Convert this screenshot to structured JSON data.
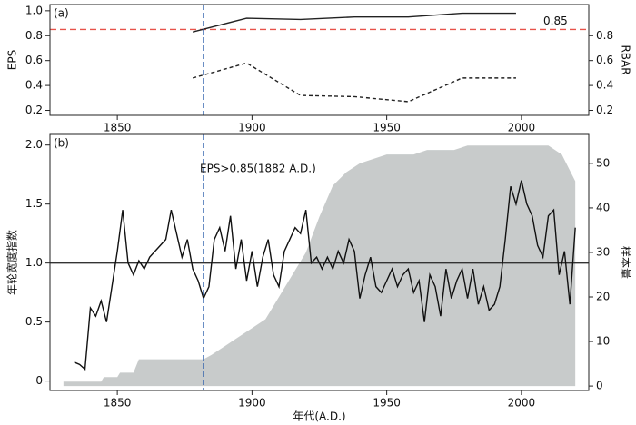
{
  "chart_data": [
    {
      "type": "line",
      "label": "(a)",
      "ylabel": "EPS",
      "y2label": "RBAR",
      "xlim": [
        1825,
        2025
      ],
      "xticks": [
        1850,
        1900,
        1950,
        2000
      ],
      "ylim": [
        0.16,
        1.05
      ],
      "yticks": [
        0.2,
        0.4,
        0.6,
        0.8,
        {
          "value": 1,
          "label": "1.0"
        }
      ],
      "y2lim": [
        0.16,
        1.05
      ],
      "y2ticks": [
        0.2,
        0.4,
        0.6,
        0.8
      ],
      "hline": 0.85,
      "hline_color": "#e8534a",
      "vline": 1882,
      "vline_color": "#2a5caa",
      "series": [
        {
          "color": "#222222",
          "style": "solid",
          "x": [
            1878,
            1898,
            1918,
            1938,
            1958,
            1978,
            1998
          ],
          "values": [
            0.83,
            0.94,
            0.93,
            0.95,
            0.95,
            0.98,
            0.98
          ]
        },
        {
          "color": "#222222",
          "style": "dashed",
          "axis": "y2",
          "x": [
            1878,
            1898,
            1918,
            1938,
            1958,
            1978,
            1998
          ],
          "values": [
            0.46,
            0.58,
            0.32,
            0.31,
            0.27,
            0.46,
            0.46
          ]
        }
      ]
    },
    {
      "type": "line",
      "label": "(b)",
      "ylabel": "年轮宽度指数",
      "y2label": "样本量",
      "xlabel": "年代(A.D.)",
      "xlim": [
        1825,
        2025
      ],
      "xticks": [
        1850,
        1900,
        1950,
        2000
      ],
      "ylim": [
        -0.08,
        2.09
      ],
      "yticks": [
        0,
        0.5,
        {
          "value": 1,
          "label": "1.0"
        },
        1.5,
        {
          "value": 2,
          "label": "2.0"
        }
      ],
      "y2lim": [
        -1,
        56.5
      ],
      "y2ticks": [
        0,
        10,
        20,
        30,
        40,
        50
      ],
      "hline": 1,
      "hline_color": "#333333",
      "vline": 1882,
      "vline_color": "#2a5caa",
      "annotation": "EPS>0.85(1882 A.D.)",
      "series": [
        {
          "style": "area",
          "color": "#c8cbcb",
          "axis": "y2",
          "x": [
            1830,
            1844,
            1845,
            1850,
            1851,
            1856,
            1858,
            1882,
            1885,
            1890,
            1895,
            1900,
            1905,
            1910,
            1915,
            1920,
            1925,
            1930,
            1935,
            1940,
            1945,
            1950,
            1960,
            1965,
            1975,
            1980,
            2000,
            2010,
            2015,
            2020
          ],
          "values": [
            1,
            1,
            2,
            2,
            3,
            3,
            6,
            6,
            7,
            9,
            11,
            13,
            15,
            20,
            25,
            30,
            38,
            45,
            48,
            50,
            51,
            52,
            52,
            53,
            53,
            54,
            54,
            54,
            52,
            46
          ]
        },
        {
          "style": "solid",
          "color": "#111111",
          "x": [
            1834,
            1836,
            1838,
            1840,
            1842,
            1844,
            1846,
            1848,
            1850,
            1852,
            1854,
            1856,
            1858,
            1860,
            1862,
            1864,
            1866,
            1868,
            1870,
            1872,
            1874,
            1876,
            1878,
            1880,
            1882,
            1884,
            1886,
            1888,
            1890,
            1892,
            1894,
            1896,
            1898,
            1900,
            1902,
            1904,
            1906,
            1908,
            1910,
            1912,
            1914,
            1916,
            1918,
            1920,
            1922,
            1924,
            1926,
            1928,
            1930,
            1932,
            1934,
            1936,
            1938,
            1940,
            1942,
            1944,
            1946,
            1948,
            1950,
            1952,
            1954,
            1956,
            1958,
            1960,
            1962,
            1964,
            1966,
            1968,
            1970,
            1972,
            1974,
            1976,
            1978,
            1980,
            1982,
            1984,
            1986,
            1988,
            1990,
            1992,
            1994,
            1996,
            1998,
            2000,
            2002,
            2004,
            2006,
            2008,
            2010,
            2012,
            2014,
            2016,
            2018,
            2020
          ],
          "values": [
            0.16,
            0.14,
            0.1,
            0.62,
            0.55,
            0.68,
            0.5,
            0.8,
            1.1,
            1.45,
            1.0,
            0.9,
            1.02,
            0.95,
            1.05,
            1.1,
            1.15,
            1.2,
            1.45,
            1.25,
            1.05,
            1.2,
            0.95,
            0.85,
            0.7,
            0.8,
            1.2,
            1.3,
            1.1,
            1.4,
            0.95,
            1.2,
            0.85,
            1.1,
            0.8,
            1.05,
            1.2,
            0.9,
            0.8,
            1.1,
            1.2,
            1.3,
            1.25,
            1.45,
            1.0,
            1.05,
            0.95,
            1.05,
            0.95,
            1.1,
            1.0,
            1.2,
            1.1,
            0.7,
            0.9,
            1.05,
            0.8,
            0.75,
            0.85,
            0.95,
            0.8,
            0.9,
            0.95,
            0.75,
            0.85,
            0.5,
            0.9,
            0.8,
            0.55,
            0.95,
            0.7,
            0.85,
            0.95,
            0.7,
            0.95,
            0.65,
            0.8,
            0.6,
            0.65,
            0.8,
            1.2,
            1.65,
            1.5,
            1.7,
            1.5,
            1.4,
            1.15,
            1.05,
            1.4,
            1.45,
            0.9,
            1.1,
            0.65,
            1.3
          ]
        }
      ]
    }
  ]
}
